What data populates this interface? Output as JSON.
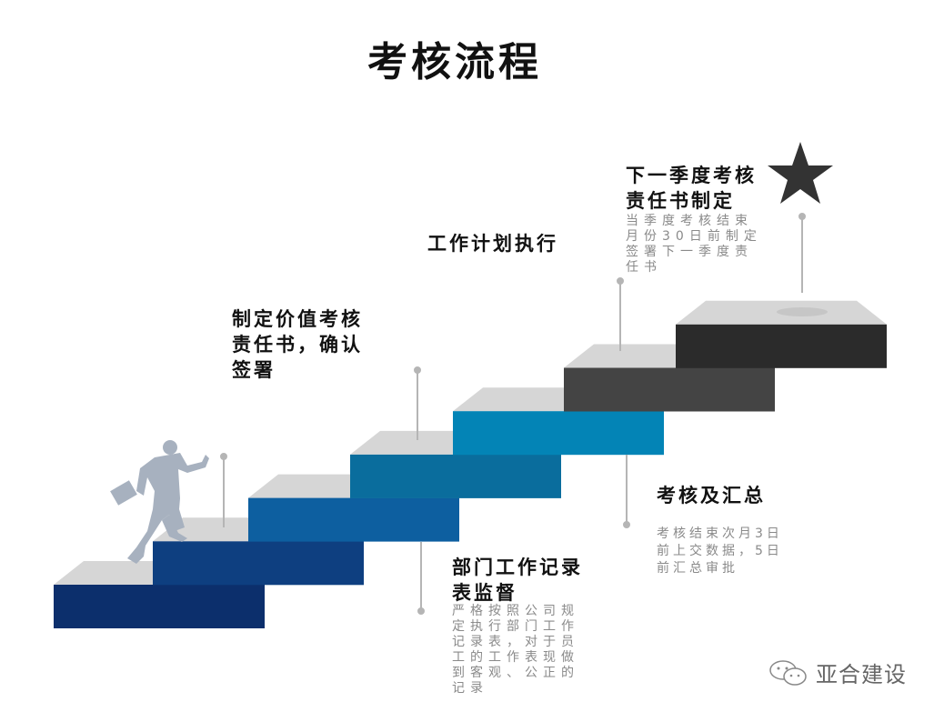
{
  "title": "考核流程",
  "steps": [
    {
      "heading": [
        "制定价值考核",
        "责任书，确认",
        "签署"
      ]
    },
    {
      "heading": [
        "工作计划执行"
      ]
    },
    {
      "heading": [
        "下一季度考核",
        "责任书制定"
      ],
      "desc": [
        "当季度考核结束",
        "月份30日前制定",
        "签署下一季度责",
        "任书"
      ]
    },
    {
      "heading": [
        "部门工作记录",
        "表监督"
      ],
      "desc": [
        "严格按照公司规",
        "定执行部门工作",
        "记录表，对于员",
        "工的工作表现做",
        "到客观、公正的",
        "记录"
      ]
    },
    {
      "heading": [
        "考核及汇总"
      ],
      "desc": [
        "考核结束次月3日",
        "前上交数据，5日",
        "前汇总审批"
      ]
    }
  ],
  "stair_colors": [
    "#0c2f6c",
    "#0e3f80",
    "#0d5fa0",
    "#0a6d9d",
    "#0384b6",
    "#444444",
    "#2b2b2b"
  ],
  "tread_color": "#d6d6d6",
  "figure_color": "#a7b1bf",
  "watermark": {
    "icon": "wechat-icon",
    "text": "亚合建设"
  }
}
